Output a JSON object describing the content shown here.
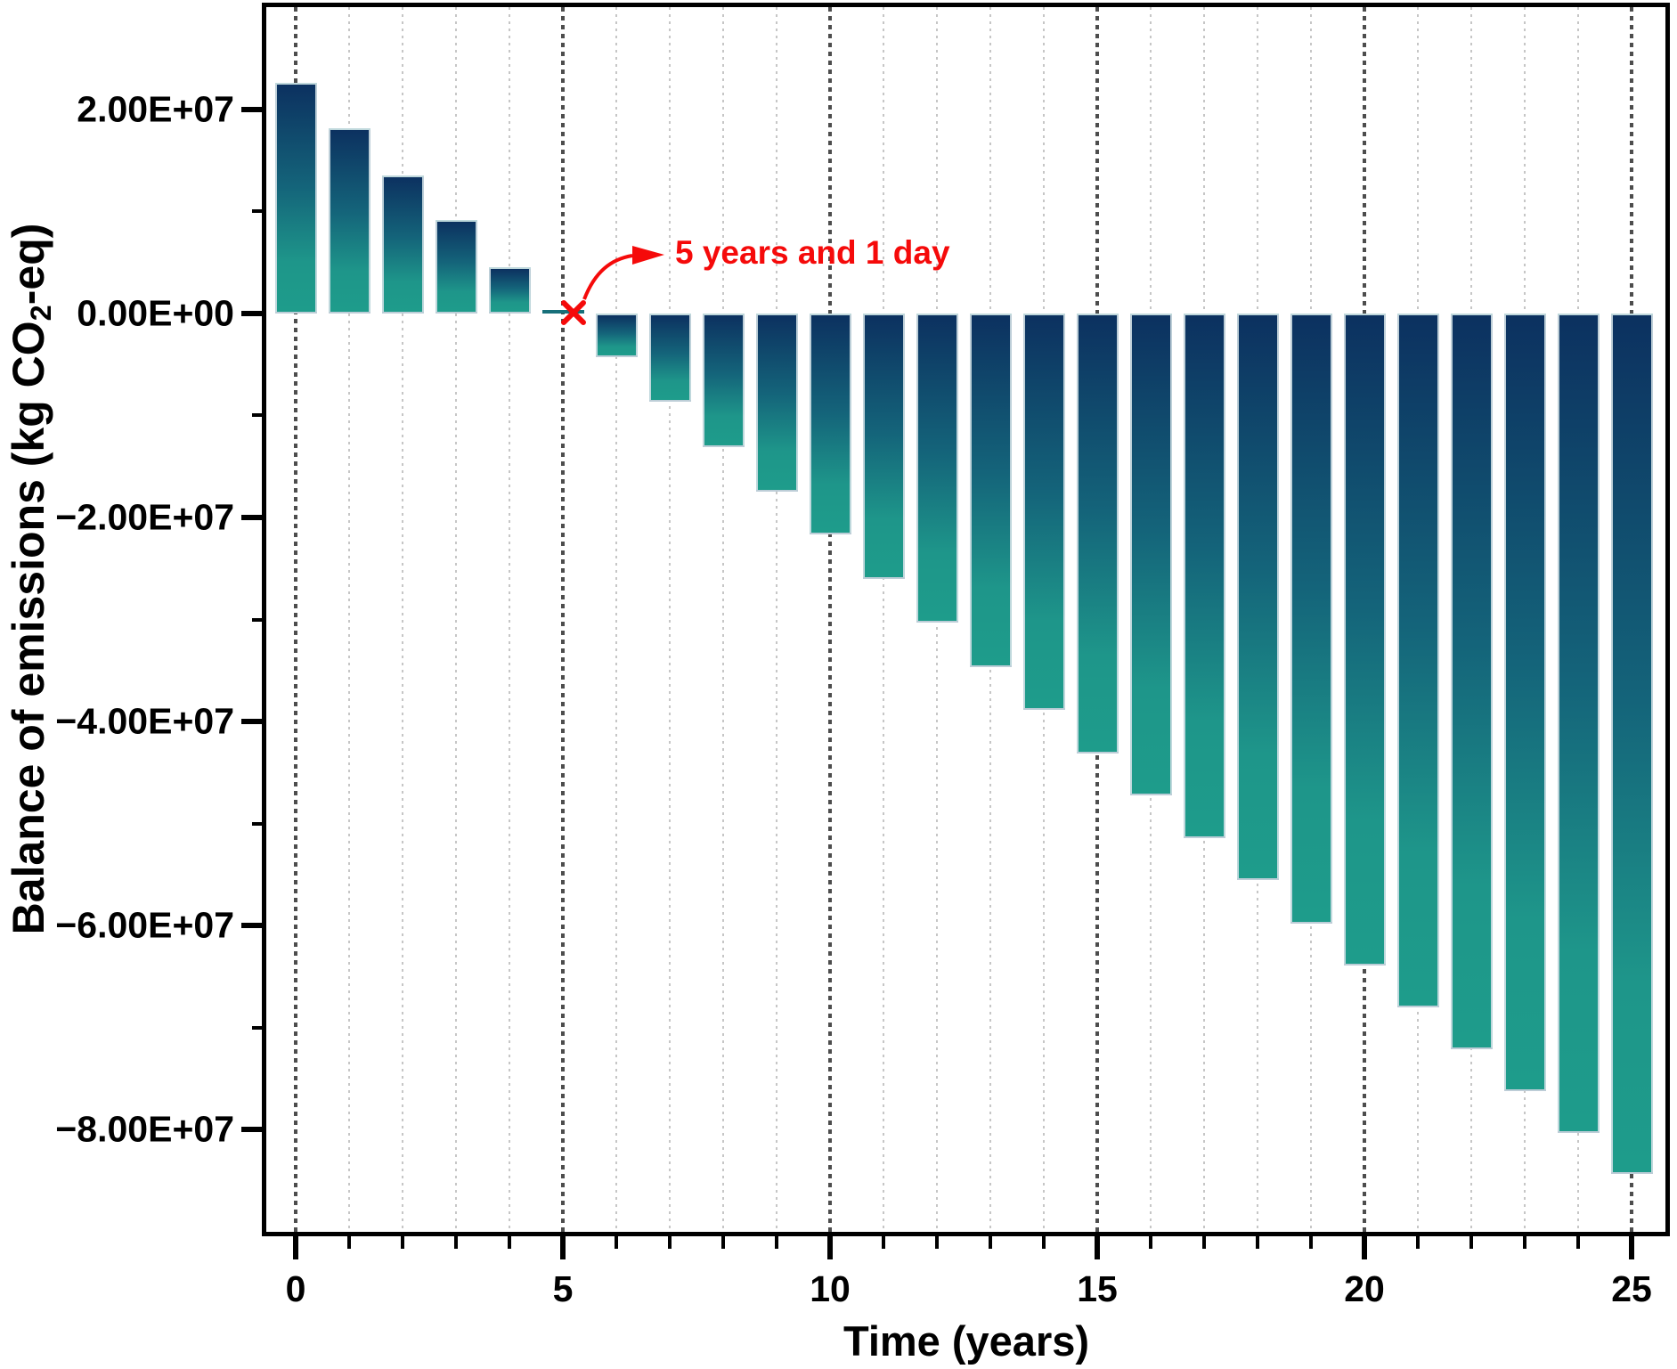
{
  "chart_data": {
    "type": "bar",
    "title": "",
    "xlabel": "Time (years)",
    "ylabel": "Balance of emissions (kg CO2-eq)",
    "ylabel_rich": {
      "pre": "Balance of emissions (kg CO",
      "sub": "2",
      "post": "-eq)"
    },
    "x": [
      0,
      1,
      2,
      3,
      4,
      5,
      6,
      7,
      8,
      9,
      10,
      11,
      12,
      13,
      14,
      15,
      16,
      17,
      18,
      19,
      20,
      21,
      22,
      23,
      24,
      25
    ],
    "values": [
      22600000,
      18100000,
      13500000,
      9100000,
      4500000,
      100000,
      -4300000,
      -8700000,
      -13100000,
      -17500000,
      -21700000,
      -26000000,
      -30300000,
      -34700000,
      -38900000,
      -43100000,
      -47200000,
      -51400000,
      -55500000,
      -59800000,
      -63900000,
      -68000000,
      -72100000,
      -76200000,
      -80300000,
      -84300000
    ],
    "ylim": [
      -90000000,
      30000000
    ],
    "xlim_years": [
      -0.55,
      25.68
    ],
    "y_major_ticks": [
      {
        "value": 20000000,
        "label": "2.00E+07"
      },
      {
        "value": 0,
        "label": "0.00E+00"
      },
      {
        "value": -20000000,
        "label": "−2.00E+07"
      },
      {
        "value": -40000000,
        "label": "−4.00E+07"
      },
      {
        "value": -60000000,
        "label": "−6.00E+07"
      },
      {
        "value": -80000000,
        "label": "−8.00E+07"
      }
    ],
    "y_minor_tick_values": [
      10000000,
      -10000000,
      -30000000,
      -50000000,
      -70000000
    ],
    "x_major_ticks": [
      {
        "value": 0,
        "label": "0"
      },
      {
        "value": 5,
        "label": "5"
      },
      {
        "value": 10,
        "label": "10"
      },
      {
        "value": 15,
        "label": "15"
      },
      {
        "value": 20,
        "label": "20"
      },
      {
        "value": 25,
        "label": "25"
      }
    ],
    "grid": {
      "x_minor_every_year": true,
      "x_major_every_5_years": true,
      "horizontal": false
    },
    "legend": null,
    "annotation": {
      "text": "5 years and 1 day",
      "marker": "x-cross",
      "marker_year": 5.2,
      "marker_value": 0
    },
    "colors": {
      "bar_gradient_top": "#0c3160",
      "bar_gradient_bottom": "#1e9c8b",
      "bar_border": "#d0dfe4",
      "flat_bar": "#17707a",
      "grid_minor": "#c6c6c6",
      "grid_major": "#4d4d4d",
      "axis": "#000000",
      "annotation_red": "#f50a0a",
      "background": "#ffffff"
    }
  }
}
